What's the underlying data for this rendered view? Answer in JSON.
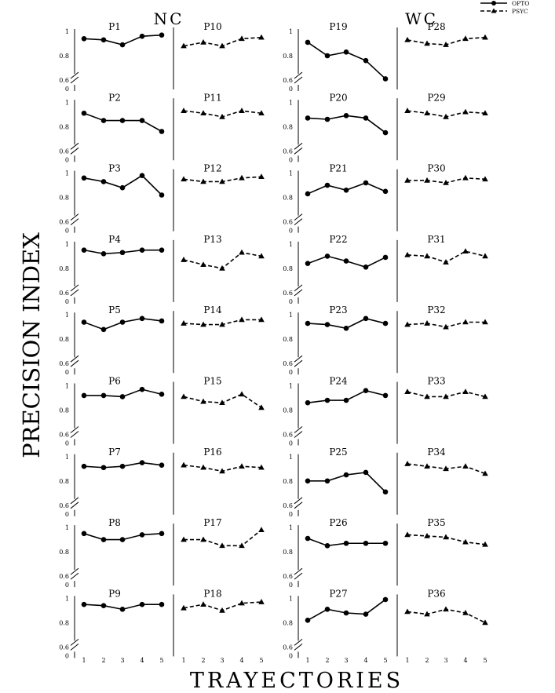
{
  "chart_data": {
    "type": "line",
    "y_axis_title": "PRECISION INDEX",
    "x_axis_title": "TRAYECTORIES",
    "x": [
      1,
      2,
      3,
      4,
      5
    ],
    "y_ticks": [
      "1",
      "0.8",
      "0.6",
      "0"
    ],
    "ylim": [
      0.6,
      1.0
    ],
    "y_axis_break": true,
    "legend": {
      "placement": "top-right",
      "series": [
        {
          "name": "OPTO",
          "marker": "circle",
          "line": "solid"
        },
        {
          "name": "PSYC",
          "marker": "triangle",
          "line": "dashed"
        }
      ]
    },
    "groups": [
      {
        "label": "NC",
        "rows": [
          {
            "opto": {
              "name": "P1",
              "values": [
                0.94,
                0.93,
                0.89,
                0.96,
                0.97
              ]
            },
            "psyc": {
              "name": "P10",
              "values": [
                0.88,
                0.91,
                0.88,
                0.94,
                0.95
              ]
            }
          },
          {
            "opto": {
              "name": "P2",
              "values": [
                0.91,
                0.85,
                0.85,
                0.85,
                0.76
              ]
            },
            "psyc": {
              "name": "P11",
              "values": [
                0.93,
                0.91,
                0.88,
                0.93,
                0.91
              ]
            }
          },
          {
            "opto": {
              "name": "P3",
              "values": [
                0.96,
                0.93,
                0.88,
                0.98,
                0.82
              ]
            },
            "psyc": {
              "name": "P12",
              "values": [
                0.95,
                0.93,
                0.93,
                0.96,
                0.97
              ]
            }
          },
          {
            "opto": {
              "name": "P4",
              "values": [
                0.95,
                0.92,
                0.93,
                0.95,
                0.95
              ]
            },
            "psyc": {
              "name": "P13",
              "values": [
                0.87,
                0.83,
                0.8,
                0.93,
                0.9
              ]
            }
          },
          {
            "opto": {
              "name": "P5",
              "values": [
                0.94,
                0.88,
                0.94,
                0.97,
                0.95
              ]
            },
            "psyc": {
              "name": "P14",
              "values": [
                0.93,
                0.92,
                0.92,
                0.96,
                0.96
              ]
            }
          },
          {
            "opto": {
              "name": "P6",
              "values": [
                0.92,
                0.92,
                0.91,
                0.97,
                0.93
              ]
            },
            "psyc": {
              "name": "P15",
              "values": [
                0.91,
                0.87,
                0.86,
                0.93,
                0.82
              ]
            }
          },
          {
            "opto": {
              "name": "P7",
              "values": [
                0.92,
                0.91,
                0.92,
                0.95,
                0.93
              ]
            },
            "psyc": {
              "name": "P16",
              "values": [
                0.93,
                0.91,
                0.88,
                0.92,
                0.91
              ]
            }
          },
          {
            "opto": {
              "name": "P8",
              "values": [
                0.95,
                0.9,
                0.9,
                0.94,
                0.95
              ]
            },
            "psyc": {
              "name": "P17",
              "values": [
                0.9,
                0.9,
                0.85,
                0.85,
                0.98
              ]
            }
          },
          {
            "opto": {
              "name": "P9",
              "values": [
                0.95,
                0.94,
                0.91,
                0.95,
                0.95
              ]
            },
            "psyc": {
              "name": "P18",
              "values": [
                0.92,
                0.95,
                0.9,
                0.96,
                0.97
              ]
            }
          }
        ]
      },
      {
        "label": "WC",
        "rows": [
          {
            "opto": {
              "name": "P19",
              "values": [
                0.91,
                0.8,
                0.83,
                0.76,
                0.61
              ]
            },
            "psyc": {
              "name": "P28",
              "values": [
                0.93,
                0.9,
                0.89,
                0.94,
                0.95
              ]
            }
          },
          {
            "opto": {
              "name": "P20",
              "values": [
                0.87,
                0.86,
                0.89,
                0.87,
                0.75
              ]
            },
            "psyc": {
              "name": "P29",
              "values": [
                0.93,
                0.91,
                0.88,
                0.92,
                0.91
              ]
            }
          },
          {
            "opto": {
              "name": "P21",
              "values": [
                0.83,
                0.9,
                0.86,
                0.92,
                0.85
              ]
            },
            "psyc": {
              "name": "P30",
              "values": [
                0.94,
                0.94,
                0.92,
                0.96,
                0.95
              ]
            }
          },
          {
            "opto": {
              "name": "P22",
              "values": [
                0.84,
                0.9,
                0.86,
                0.81,
                0.89
              ]
            },
            "psyc": {
              "name": "P31",
              "values": [
                0.91,
                0.9,
                0.85,
                0.94,
                0.9
              ]
            }
          },
          {
            "opto": {
              "name": "P23",
              "values": [
                0.93,
                0.92,
                0.89,
                0.97,
                0.93
              ]
            },
            "psyc": {
              "name": "P32",
              "values": [
                0.92,
                0.93,
                0.9,
                0.94,
                0.94
              ]
            }
          },
          {
            "opto": {
              "name": "P24",
              "values": [
                0.86,
                0.88,
                0.88,
                0.96,
                0.92
              ]
            },
            "psyc": {
              "name": "P33",
              "values": [
                0.95,
                0.91,
                0.91,
                0.95,
                0.91
              ]
            }
          },
          {
            "opto": {
              "name": "P25",
              "values": [
                0.8,
                0.8,
                0.85,
                0.87,
                0.71
              ]
            },
            "psyc": {
              "name": "P34",
              "values": [
                0.94,
                0.92,
                0.9,
                0.92,
                0.86
              ]
            }
          },
          {
            "opto": {
              "name": "P26",
              "values": [
                0.91,
                0.85,
                0.87,
                0.87,
                0.87
              ]
            },
            "psyc": {
              "name": "P35",
              "values": [
                0.94,
                0.93,
                0.92,
                0.88,
                0.86
              ]
            }
          },
          {
            "opto": {
              "name": "P27",
              "values": [
                0.82,
                0.91,
                0.88,
                0.87,
                0.99
              ]
            },
            "psyc": {
              "name": "P36",
              "values": [
                0.89,
                0.87,
                0.91,
                0.88,
                0.8
              ]
            }
          }
        ]
      }
    ]
  }
}
